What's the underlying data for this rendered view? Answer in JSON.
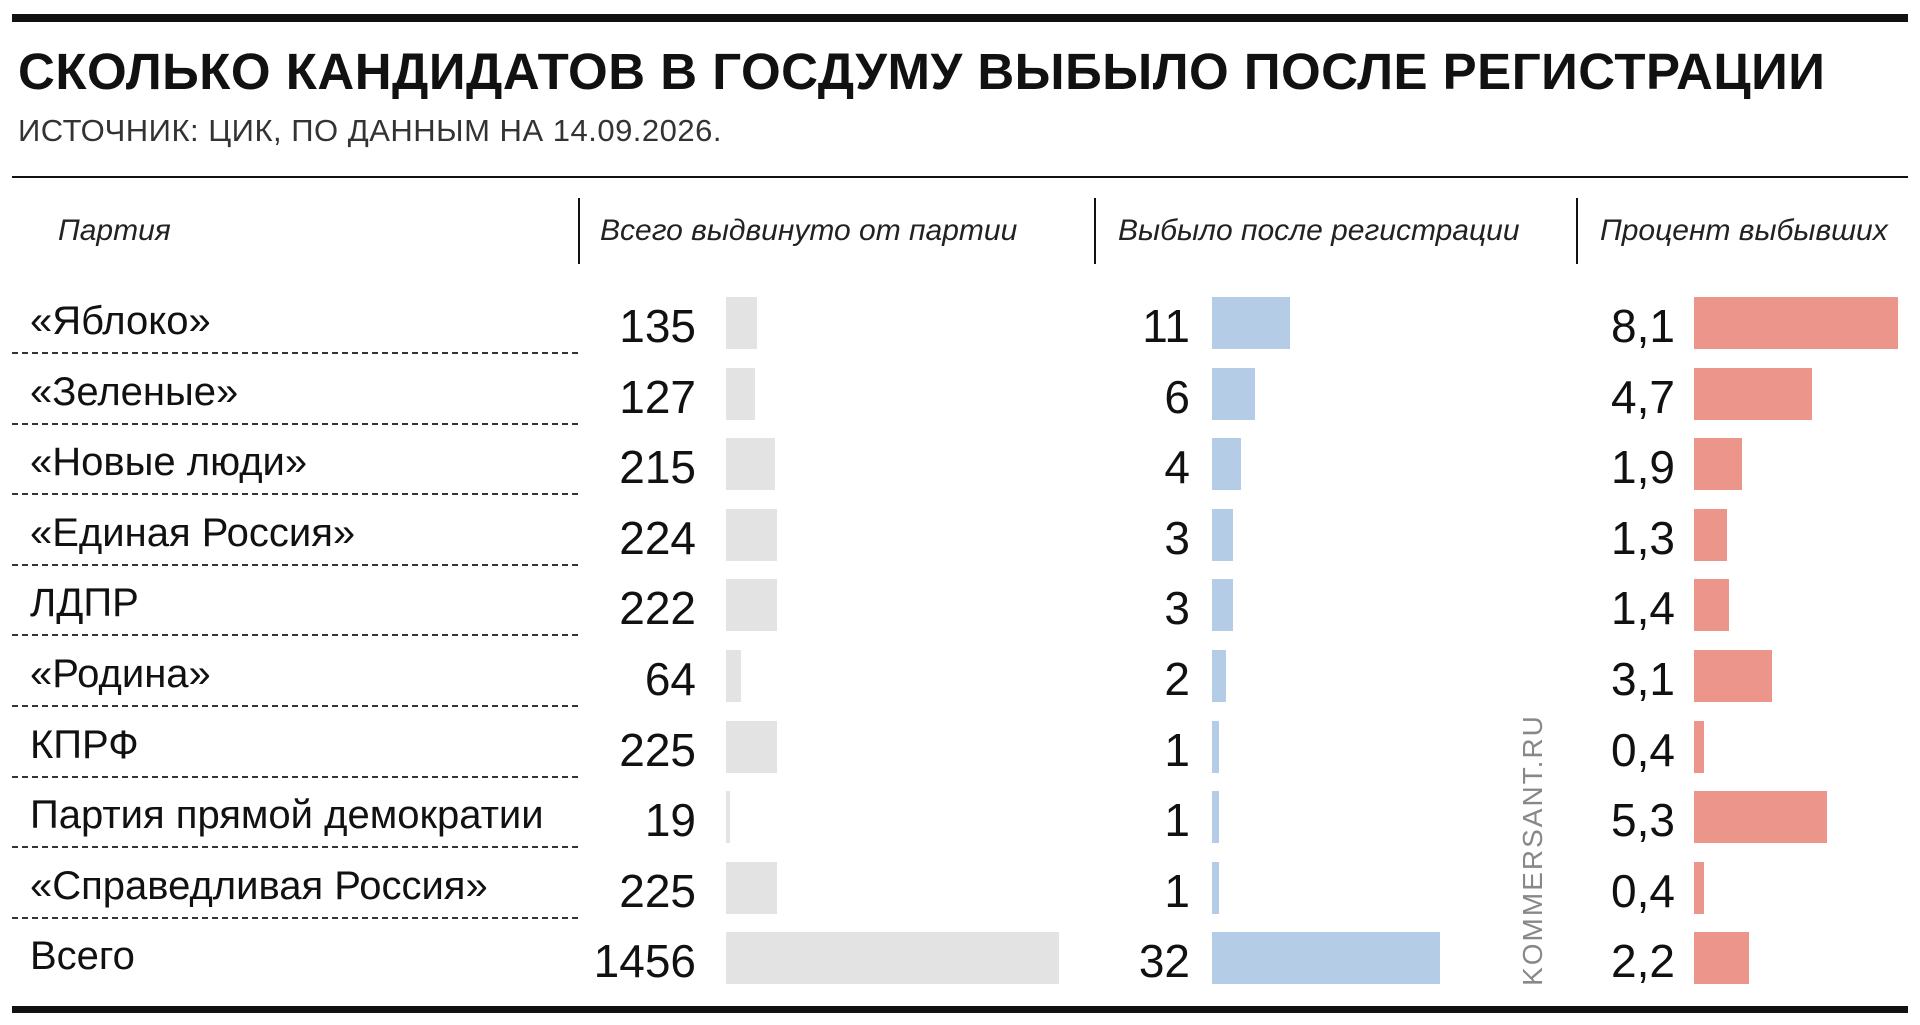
{
  "chart_data": {
    "type": "table",
    "title": "СКОЛЬКО КАНДИДАТОВ В ГОСДУМУ ВЫБЫЛО ПОСЛЕ РЕГИСТРАЦИИ",
    "subtitle": "ИСТОЧНИК: ЦИК, ПО ДАННЫМ НА 14.09.2026.",
    "columns": [
      "Партия",
      "Всего выдвинуто от партии",
      "Выбыло после регистрации",
      "Процент выбывших"
    ],
    "rows": [
      {
        "party": "«Яблоко»",
        "nominated": 135,
        "nominated_label": "135",
        "dropped": 11,
        "dropped_label": "11",
        "percent": 8.1,
        "percent_label": "8,1"
      },
      {
        "party": "«Зеленые»",
        "nominated": 127,
        "nominated_label": "127",
        "dropped": 6,
        "dropped_label": "6",
        "percent": 4.7,
        "percent_label": "4,7"
      },
      {
        "party": "«Новые люди»",
        "nominated": 215,
        "nominated_label": "215",
        "dropped": 4,
        "dropped_label": "4",
        "percent": 1.9,
        "percent_label": "1,9"
      },
      {
        "party": "«Единая Россия»",
        "nominated": 224,
        "nominated_label": "224",
        "dropped": 3,
        "dropped_label": "3",
        "percent": 1.3,
        "percent_label": "1,3"
      },
      {
        "party": "ЛДПР",
        "nominated": 222,
        "nominated_label": "222",
        "dropped": 3,
        "dropped_label": "3",
        "percent": 1.4,
        "percent_label": "1,4"
      },
      {
        "party": "«Родина»",
        "nominated": 64,
        "nominated_label": "64",
        "dropped": 2,
        "dropped_label": "2",
        "percent": 3.1,
        "percent_label": "3,1"
      },
      {
        "party": "КПРФ",
        "nominated": 225,
        "nominated_label": "225",
        "dropped": 1,
        "dropped_label": "1",
        "percent": 0.4,
        "percent_label": "0,4"
      },
      {
        "party": "Партия прямой демократии",
        "nominated": 19,
        "nominated_label": "19",
        "dropped": 1,
        "dropped_label": "1",
        "percent": 5.3,
        "percent_label": "5,3"
      },
      {
        "party": "«Справедливая Россия»",
        "nominated": 225,
        "nominated_label": "225",
        "dropped": 1,
        "dropped_label": "1",
        "percent": 0.4,
        "percent_label": "0,4"
      },
      {
        "party": "Всего",
        "nominated": 1456,
        "nominated_label": "1456",
        "dropped": 32,
        "dropped_label": "32",
        "percent": 2.2,
        "percent_label": "2,2"
      }
    ],
    "colors": {
      "nominated": "#e3e3e3",
      "dropped": "#b5cce6",
      "percent": "#ec958b"
    }
  },
  "watermark": "KOMMERSANT.RU"
}
